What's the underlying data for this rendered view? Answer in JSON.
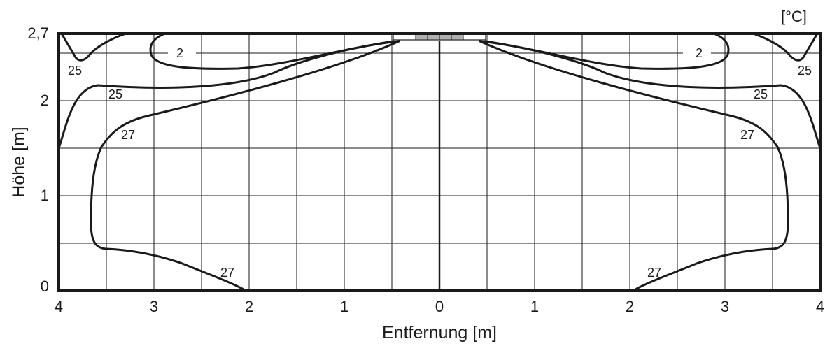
{
  "unit_label": "[°C]",
  "x_axis": {
    "title": "Entfernung [m]",
    "ticks": [
      "4",
      "3",
      "2",
      "1",
      "0",
      "1",
      "2",
      "3",
      "4"
    ]
  },
  "y_axis": {
    "title": "Höhe [m]",
    "ticks": [
      "0",
      "1",
      "2",
      "2,7"
    ]
  },
  "isotherm_labels": {
    "top_left_2": "2",
    "top_right_2": "2",
    "corner_left_25": "25",
    "corner_right_25": "25",
    "mid_left_25": "25",
    "mid_right_25": "25",
    "left_27": "27",
    "right_27": "27",
    "bottom_left_27": "27",
    "bottom_right_27": "27"
  },
  "colors": {
    "ink": "#1a1a1a",
    "fixture": "#b0b0b0"
  }
}
